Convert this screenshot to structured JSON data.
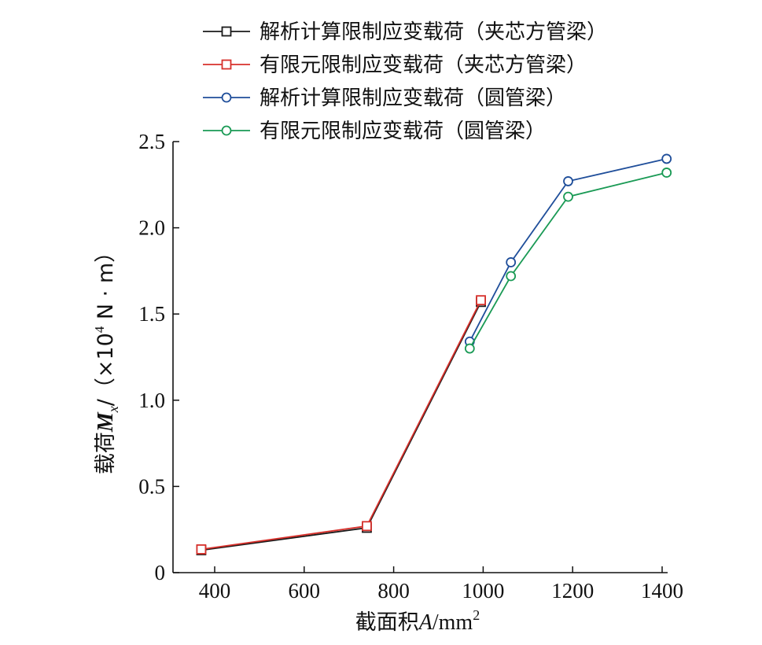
{
  "chart_data": {
    "type": "line",
    "xlabel": "截面积A/mm²",
    "ylabel": "载荷Mx/（×10⁴ N · m）",
    "xlabel_parts": {
      "prefix": "截面积",
      "var": "A",
      "unit": "/mm",
      "sup": "2"
    },
    "ylabel_parts": {
      "prefix": "载荷",
      "var": "M",
      "sub": "x",
      "unit_a": "/（×10",
      "sup": "4",
      "unit_b": " N · m）"
    },
    "xlim": [
      200,
      1440
    ],
    "ylim": [
      0,
      2.5
    ],
    "xticks": [
      400,
      600,
      800,
      1000,
      1200,
      1400
    ],
    "yticks": [
      0,
      0.5,
      1.0,
      1.5,
      2.0,
      2.5
    ],
    "ytick_labels": [
      "0",
      "0.5",
      "1.0",
      "1.5",
      "2.0",
      "2.5"
    ],
    "grid": false,
    "legend_position": "top",
    "series": [
      {
        "name": "解析计算限制应变载荷（夹芯方管梁）",
        "color": "#1a1a1a",
        "marker": "square",
        "x": [
          370,
          740,
          995
        ],
        "y": [
          0.13,
          0.26,
          1.57
        ]
      },
      {
        "name": "有限元限制应变载荷（夹芯方管梁）",
        "color": "#d7302b",
        "marker": "square",
        "x": [
          370,
          740,
          995
        ],
        "y": [
          0.135,
          0.27,
          1.58
        ]
      },
      {
        "name": "解析计算限制应变载荷（圆管梁）",
        "color": "#1f4e9a",
        "marker": "circle",
        "x": [
          970,
          1062,
          1190,
          1410
        ],
        "y": [
          1.34,
          1.8,
          2.27,
          2.4
        ]
      },
      {
        "name": "有限元限制应变载荷（圆管梁）",
        "color": "#1a9a55",
        "marker": "circle",
        "x": [
          970,
          1062,
          1190,
          1410
        ],
        "y": [
          1.3,
          1.72,
          2.18,
          2.32
        ]
      }
    ]
  }
}
